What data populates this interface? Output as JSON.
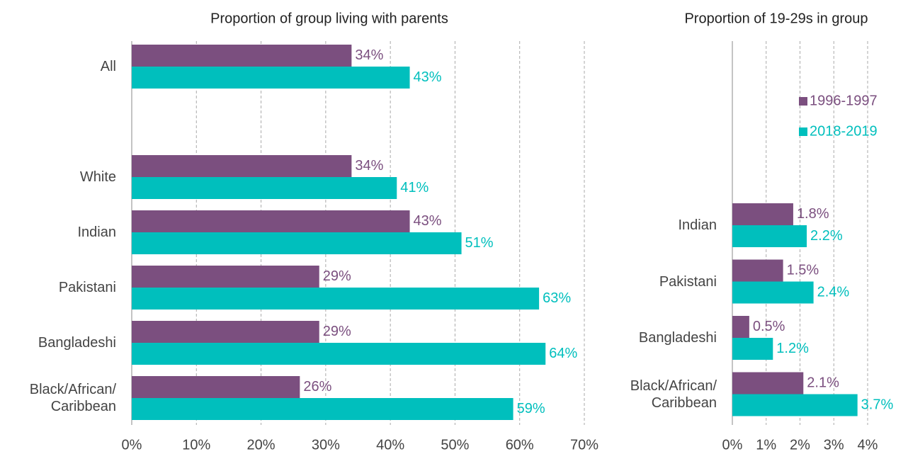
{
  "chart_data": [
    {
      "type": "bar",
      "orientation": "horizontal",
      "title": "Proportion of group living with parents",
      "categories": [
        "All",
        null,
        "White",
        "Indian",
        "Pakistani",
        "Bangladeshi",
        "Black/African/\nCaribbean"
      ],
      "series": [
        {
          "color": "#7b4f7f",
          "values": [
            34,
            null,
            34,
            43,
            29,
            29,
            26
          ],
          "value_labels": [
            "34%",
            null,
            "34%",
            "43%",
            "29%",
            "29%",
            "26%"
          ]
        },
        {
          "color": "#00bfbd",
          "values": [
            43,
            null,
            41,
            51,
            63,
            64,
            59
          ],
          "value_labels": [
            "43%",
            null,
            "41%",
            "51%",
            "63%",
            "64%",
            "59%"
          ]
        }
      ],
      "xlim": [
        0,
        70
      ],
      "xticks": [
        {
          "value": 0,
          "label": "0%"
        },
        {
          "value": 10,
          "label": "10%"
        },
        {
          "value": 20,
          "label": "20%"
        },
        {
          "value": 30,
          "label": "30%"
        },
        {
          "value": 40,
          "label": "40%"
        },
        {
          "value": 50,
          "label": "50%"
        },
        {
          "value": 60,
          "label": "60%"
        },
        {
          "value": 70,
          "label": "70%"
        }
      ],
      "grid": true
    },
    {
      "type": "bar",
      "orientation": "horizontal",
      "title": "Proportion of 19-29s in group",
      "categories": [
        "Indian",
        "Pakistani",
        "Bangladeshi",
        "Black/African/\nCaribbean"
      ],
      "series": [
        {
          "name": "1996-1997",
          "color": "#7b4f7f",
          "values": [
            1.8,
            1.5,
            0.5,
            2.1
          ],
          "value_labels": [
            "1.8%",
            "1.5%",
            "0.5%",
            "2.1%"
          ]
        },
        {
          "name": "2018-2019",
          "color": "#00bfbd",
          "values": [
            2.2,
            2.4,
            1.2,
            3.7
          ],
          "value_labels": [
            "2.2%",
            "2.4%",
            "1.2%",
            "3.7%"
          ]
        }
      ],
      "xlim": [
        0,
        4
      ],
      "xticks": [
        {
          "value": 0,
          "label": "0%"
        },
        {
          "value": 1,
          "label": "1%"
        },
        {
          "value": 2,
          "label": "2%"
        },
        {
          "value": 3,
          "label": "3%"
        },
        {
          "value": 4,
          "label": "4%"
        }
      ],
      "grid": true,
      "legend": "upper right"
    }
  ]
}
